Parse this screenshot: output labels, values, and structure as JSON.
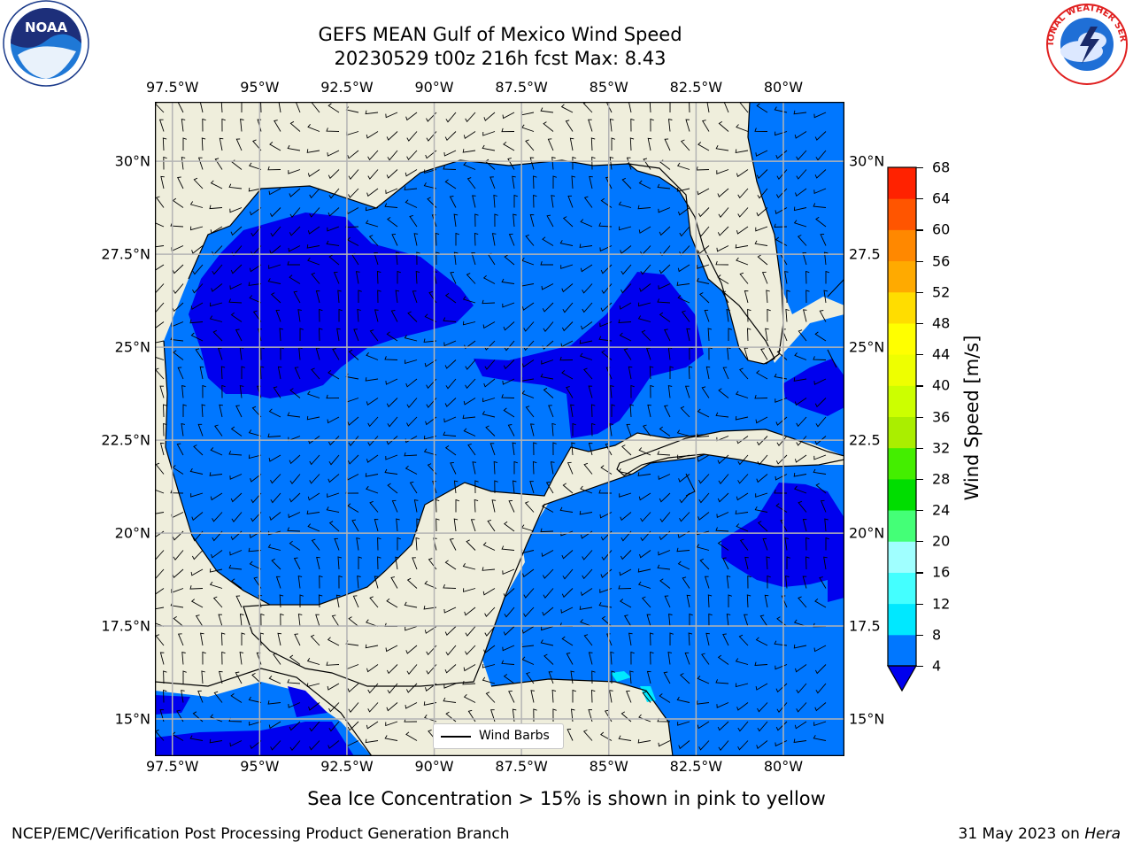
{
  "title": {
    "line1": "GEFS MEAN Gulf of Mexico Wind Speed",
    "line2": "20230529 t00z 216h fcst   Max: 8.43"
  },
  "map": {
    "lon_ticks": [
      "97.5°W",
      "95°W",
      "92.5°W",
      "90°W",
      "87.5°W",
      "85°W",
      "82.5°W",
      "80°W"
    ],
    "lat_ticks_left": [
      "30°N",
      "27.5°N",
      "25°N",
      "22.5°N",
      "20°N",
      "17.5°N",
      "15°N"
    ],
    "lat_ticks_right": [
      "30°N",
      "27.5",
      "25°N",
      "22.5",
      "20°N",
      "17.5",
      "15°N"
    ],
    "lon_values": [
      -97.5,
      -95,
      -92.5,
      -90,
      -87.5,
      -85,
      -82.5,
      -80
    ],
    "lat_values": [
      30,
      27.5,
      25,
      22.5,
      20,
      17.5,
      15
    ],
    "extent": {
      "lon_min": -98,
      "lon_max": -78.25,
      "lat_min": 14,
      "lat_max": 31.6
    },
    "legend_label": "Wind Barbs",
    "colors": {
      "land": "#efeedc",
      "wind_4_8": "#0077ff",
      "wind_below_4": "#0000ee",
      "wind_8_12": "#00e8ff",
      "grid": "#b4b4b4"
    }
  },
  "colorbar": {
    "title": "Wind Speed [m/s]",
    "levels": [
      "4",
      "8",
      "12",
      "16",
      "20",
      "24",
      "28",
      "32",
      "36",
      "40",
      "44",
      "48",
      "52",
      "56",
      "60",
      "64",
      "68"
    ],
    "colors": [
      "#0077ff",
      "#00e8ff",
      "#44ffff",
      "#a0ffff",
      "#44ff77",
      "#00dd00",
      "#44ee00",
      "#aaee00",
      "#ccff00",
      "#eeff00",
      "#ffff00",
      "#ffdd00",
      "#ffaa00",
      "#ff8800",
      "#ff5500",
      "#ff2200",
      "#ff0000"
    ],
    "extend_color": "#0000ee"
  },
  "caption": "Sea Ice Concentration > 15% is shown in pink to yellow",
  "footer": {
    "left": "NCEP/EMC/Verification Post Processing Product Generation Branch",
    "right_date": "31 May 2023 on ",
    "right_host": "Hera"
  },
  "logos": {
    "left": "NOAA",
    "right": "NATIONAL WEATHER SERVICE"
  }
}
